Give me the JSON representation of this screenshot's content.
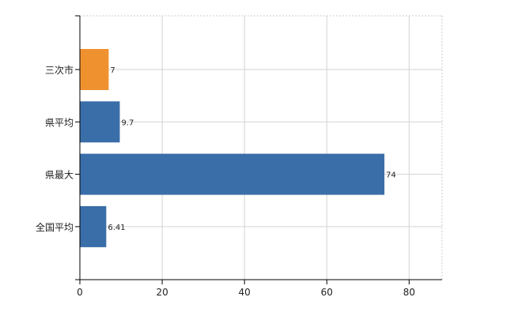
{
  "chart_data": {
    "type": "bar",
    "orientation": "horizontal",
    "categories": [
      "三次市",
      "県平均",
      "県最大",
      "全国平均"
    ],
    "values": [
      7,
      9.7,
      74,
      6.41
    ],
    "data_labels": [
      "7",
      "9.7",
      "74",
      "6.41"
    ],
    "bar_colors": [
      "#f0912f",
      "#3a6ea8",
      "#3a6ea8",
      "#3a6ea8"
    ],
    "xlim": [
      0,
      88
    ],
    "xticks": [
      0,
      20,
      40,
      60,
      80
    ],
    "grid": true,
    "title": "",
    "xlabel": "",
    "ylabel": ""
  }
}
